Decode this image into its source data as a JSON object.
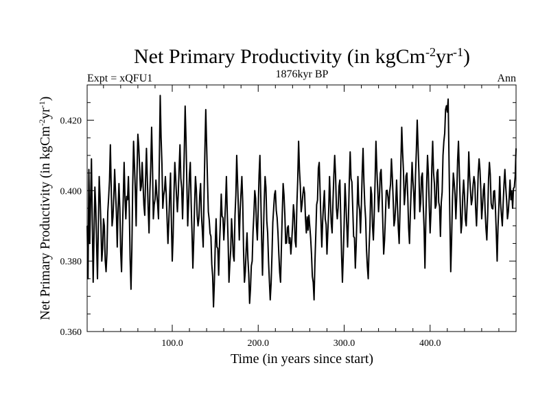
{
  "chart_data": {
    "type": "line",
    "title_main": "Net Primary Productivity (in kgCm",
    "title_sup1": "-2",
    "title_mid": "yr",
    "title_sup2": "-1",
    "title_end": ")",
    "subtitle_left": "Expt = xQFU1",
    "subtitle_center": "1876kyr BP",
    "subtitle_right": "Ann",
    "xlabel": "Time (in years since start)",
    "ylabel_main": "Net Primary Productivity (in kgCm",
    "ylabel_sup1": "-2",
    "ylabel_mid": "yr",
    "ylabel_sup2": "-1",
    "ylabel_end": ")",
    "xlim": [
      1,
      500
    ],
    "ylim": [
      0.36,
      0.43
    ],
    "x_ticks": [
      100,
      200,
      300,
      400
    ],
    "x_tick_labels": [
      "100.0",
      "200.0",
      "300.0",
      "400.0"
    ],
    "y_ticks": [
      0.36,
      0.38,
      0.4,
      0.42
    ],
    "y_tick_labels": [
      "0.360",
      "0.380",
      "0.400",
      "0.420"
    ],
    "line_color": "#000000",
    "series": [
      {
        "name": "Net Primary Productivity",
        "x_start": 1,
        "x_step": 1,
        "anchors": [
          [
            1,
            0.39
          ],
          [
            2,
            0.375
          ],
          [
            3,
            0.406
          ],
          [
            4,
            0.385
          ],
          [
            6,
            0.409
          ],
          [
            8,
            0.374
          ],
          [
            10,
            0.401
          ],
          [
            13,
            0.375
          ],
          [
            15,
            0.404
          ],
          [
            18,
            0.38
          ],
          [
            20,
            0.392
          ],
          [
            23,
            0.377
          ],
          [
            26,
            0.398
          ],
          [
            28,
            0.413
          ],
          [
            30,
            0.39
          ],
          [
            33,
            0.406
          ],
          [
            36,
            0.384
          ],
          [
            38,
            0.402
          ],
          [
            41,
            0.377
          ],
          [
            44,
            0.408
          ],
          [
            46,
            0.392
          ],
          [
            49,
            0.404
          ],
          [
            52,
            0.372
          ],
          [
            55,
            0.414
          ],
          [
            58,
            0.39
          ],
          [
            60,
            0.416
          ],
          [
            63,
            0.4
          ],
          [
            65,
            0.408
          ],
          [
            68,
            0.393
          ],
          [
            70,
            0.412
          ],
          [
            73,
            0.388
          ],
          [
            76,
            0.418
          ],
          [
            78,
            0.392
          ],
          [
            81,
            0.403
          ],
          [
            84,
            0.392
          ],
          [
            86,
            0.427
          ],
          [
            89,
            0.395
          ],
          [
            92,
            0.404
          ],
          [
            95,
            0.385
          ],
          [
            98,
            0.405
          ],
          [
            100,
            0.38
          ],
          [
            103,
            0.408
          ],
          [
            106,
            0.394
          ],
          [
            109,
            0.413
          ],
          [
            112,
            0.392
          ],
          [
            115,
            0.424
          ],
          [
            118,
            0.39
          ],
          [
            121,
            0.408
          ],
          [
            124,
            0.378
          ],
          [
            127,
            0.404
          ],
          [
            130,
            0.39
          ],
          [
            133,
            0.402
          ],
          [
            136,
            0.384
          ],
          [
            139,
            0.423
          ],
          [
            142,
            0.394
          ],
          [
            145,
            0.387
          ],
          [
            148,
            0.367
          ],
          [
            151,
            0.392
          ],
          [
            154,
            0.376
          ],
          [
            157,
            0.399
          ],
          [
            160,
            0.386
          ],
          [
            163,
            0.404
          ],
          [
            166,
            0.374
          ],
          [
            169,
            0.392
          ],
          [
            172,
            0.38
          ],
          [
            175,
            0.41
          ],
          [
            178,
            0.386
          ],
          [
            181,
            0.404
          ],
          [
            184,
            0.374
          ],
          [
            187,
            0.388
          ],
          [
            190,
            0.368
          ],
          [
            193,
            0.38
          ],
          [
            196,
            0.4
          ],
          [
            199,
            0.386
          ],
          [
            202,
            0.41
          ],
          [
            205,
            0.376
          ],
          [
            208,
            0.404
          ],
          [
            211,
            0.388
          ],
          [
            214,
            0.369
          ],
          [
            217,
            0.391
          ],
          [
            220,
            0.4
          ],
          [
            223,
            0.388
          ],
          [
            226,
            0.374
          ],
          [
            229,
            0.402
          ],
          [
            232,
            0.385
          ],
          [
            235,
            0.39
          ],
          [
            238,
            0.382
          ],
          [
            241,
            0.396
          ],
          [
            244,
            0.384
          ],
          [
            247,
            0.414
          ],
          [
            250,
            0.394
          ],
          [
            253,
            0.401
          ],
          [
            256,
            0.388
          ],
          [
            259,
            0.393
          ],
          [
            262,
            0.382
          ],
          [
            265,
            0.369
          ],
          [
            268,
            0.396
          ],
          [
            271,
            0.408
          ],
          [
            274,
            0.384
          ],
          [
            277,
            0.4
          ],
          [
            280,
            0.382
          ],
          [
            283,
            0.404
          ],
          [
            286,
            0.388
          ],
          [
            289,
            0.41
          ],
          [
            292,
            0.392
          ],
          [
            295,
            0.403
          ],
          [
            298,
            0.374
          ],
          [
            301,
            0.402
          ],
          [
            304,
            0.384
          ],
          [
            307,
            0.411
          ],
          [
            310,
            0.395
          ],
          [
            313,
            0.378
          ],
          [
            316,
            0.404
          ],
          [
            319,
            0.388
          ],
          [
            322,
            0.412
          ],
          [
            325,
            0.392
          ],
          [
            328,
            0.375
          ],
          [
            331,
            0.401
          ],
          [
            334,
            0.386
          ],
          [
            337,
            0.414
          ],
          [
            340,
            0.394
          ],
          [
            343,
            0.406
          ],
          [
            346,
            0.382
          ],
          [
            349,
            0.4
          ],
          [
            352,
            0.395
          ],
          [
            355,
            0.409
          ],
          [
            358,
            0.39
          ],
          [
            361,
            0.403
          ],
          [
            364,
            0.385
          ],
          [
            367,
            0.418
          ],
          [
            370,
            0.396
          ],
          [
            373,
            0.405
          ],
          [
            376,
            0.385
          ],
          [
            379,
            0.408
          ],
          [
            382,
            0.392
          ],
          [
            385,
            0.42
          ],
          [
            388,
            0.394
          ],
          [
            391,
            0.405
          ],
          [
            394,
            0.378
          ],
          [
            397,
            0.41
          ],
          [
            400,
            0.388
          ],
          [
            403,
            0.414
          ],
          [
            406,
            0.395
          ],
          [
            409,
            0.406
          ],
          [
            412,
            0.387
          ],
          [
            415,
            0.41
          ],
          [
            418,
            0.423
          ],
          [
            421,
            0.426
          ],
          [
            424,
            0.377
          ],
          [
            427,
            0.405
          ],
          [
            430,
            0.392
          ],
          [
            433,
            0.414
          ],
          [
            436,
            0.388
          ],
          [
            439,
            0.403
          ],
          [
            442,
            0.39
          ],
          [
            445,
            0.411
          ],
          [
            448,
            0.396
          ],
          [
            451,
            0.404
          ],
          [
            454,
            0.39
          ],
          [
            457,
            0.409
          ],
          [
            460,
            0.392
          ],
          [
            463,
            0.402
          ],
          [
            466,
            0.386
          ],
          [
            469,
            0.408
          ],
          [
            472,
            0.395
          ],
          [
            475,
            0.4
          ],
          [
            478,
            0.38
          ],
          [
            481,
            0.404
          ],
          [
            484,
            0.39
          ],
          [
            487,
            0.406
          ],
          [
            490,
            0.392
          ],
          [
            493,
            0.403
          ],
          [
            496,
            0.395
          ],
          [
            498,
            0.401
          ],
          [
            500,
            0.412
          ]
        ]
      }
    ]
  }
}
